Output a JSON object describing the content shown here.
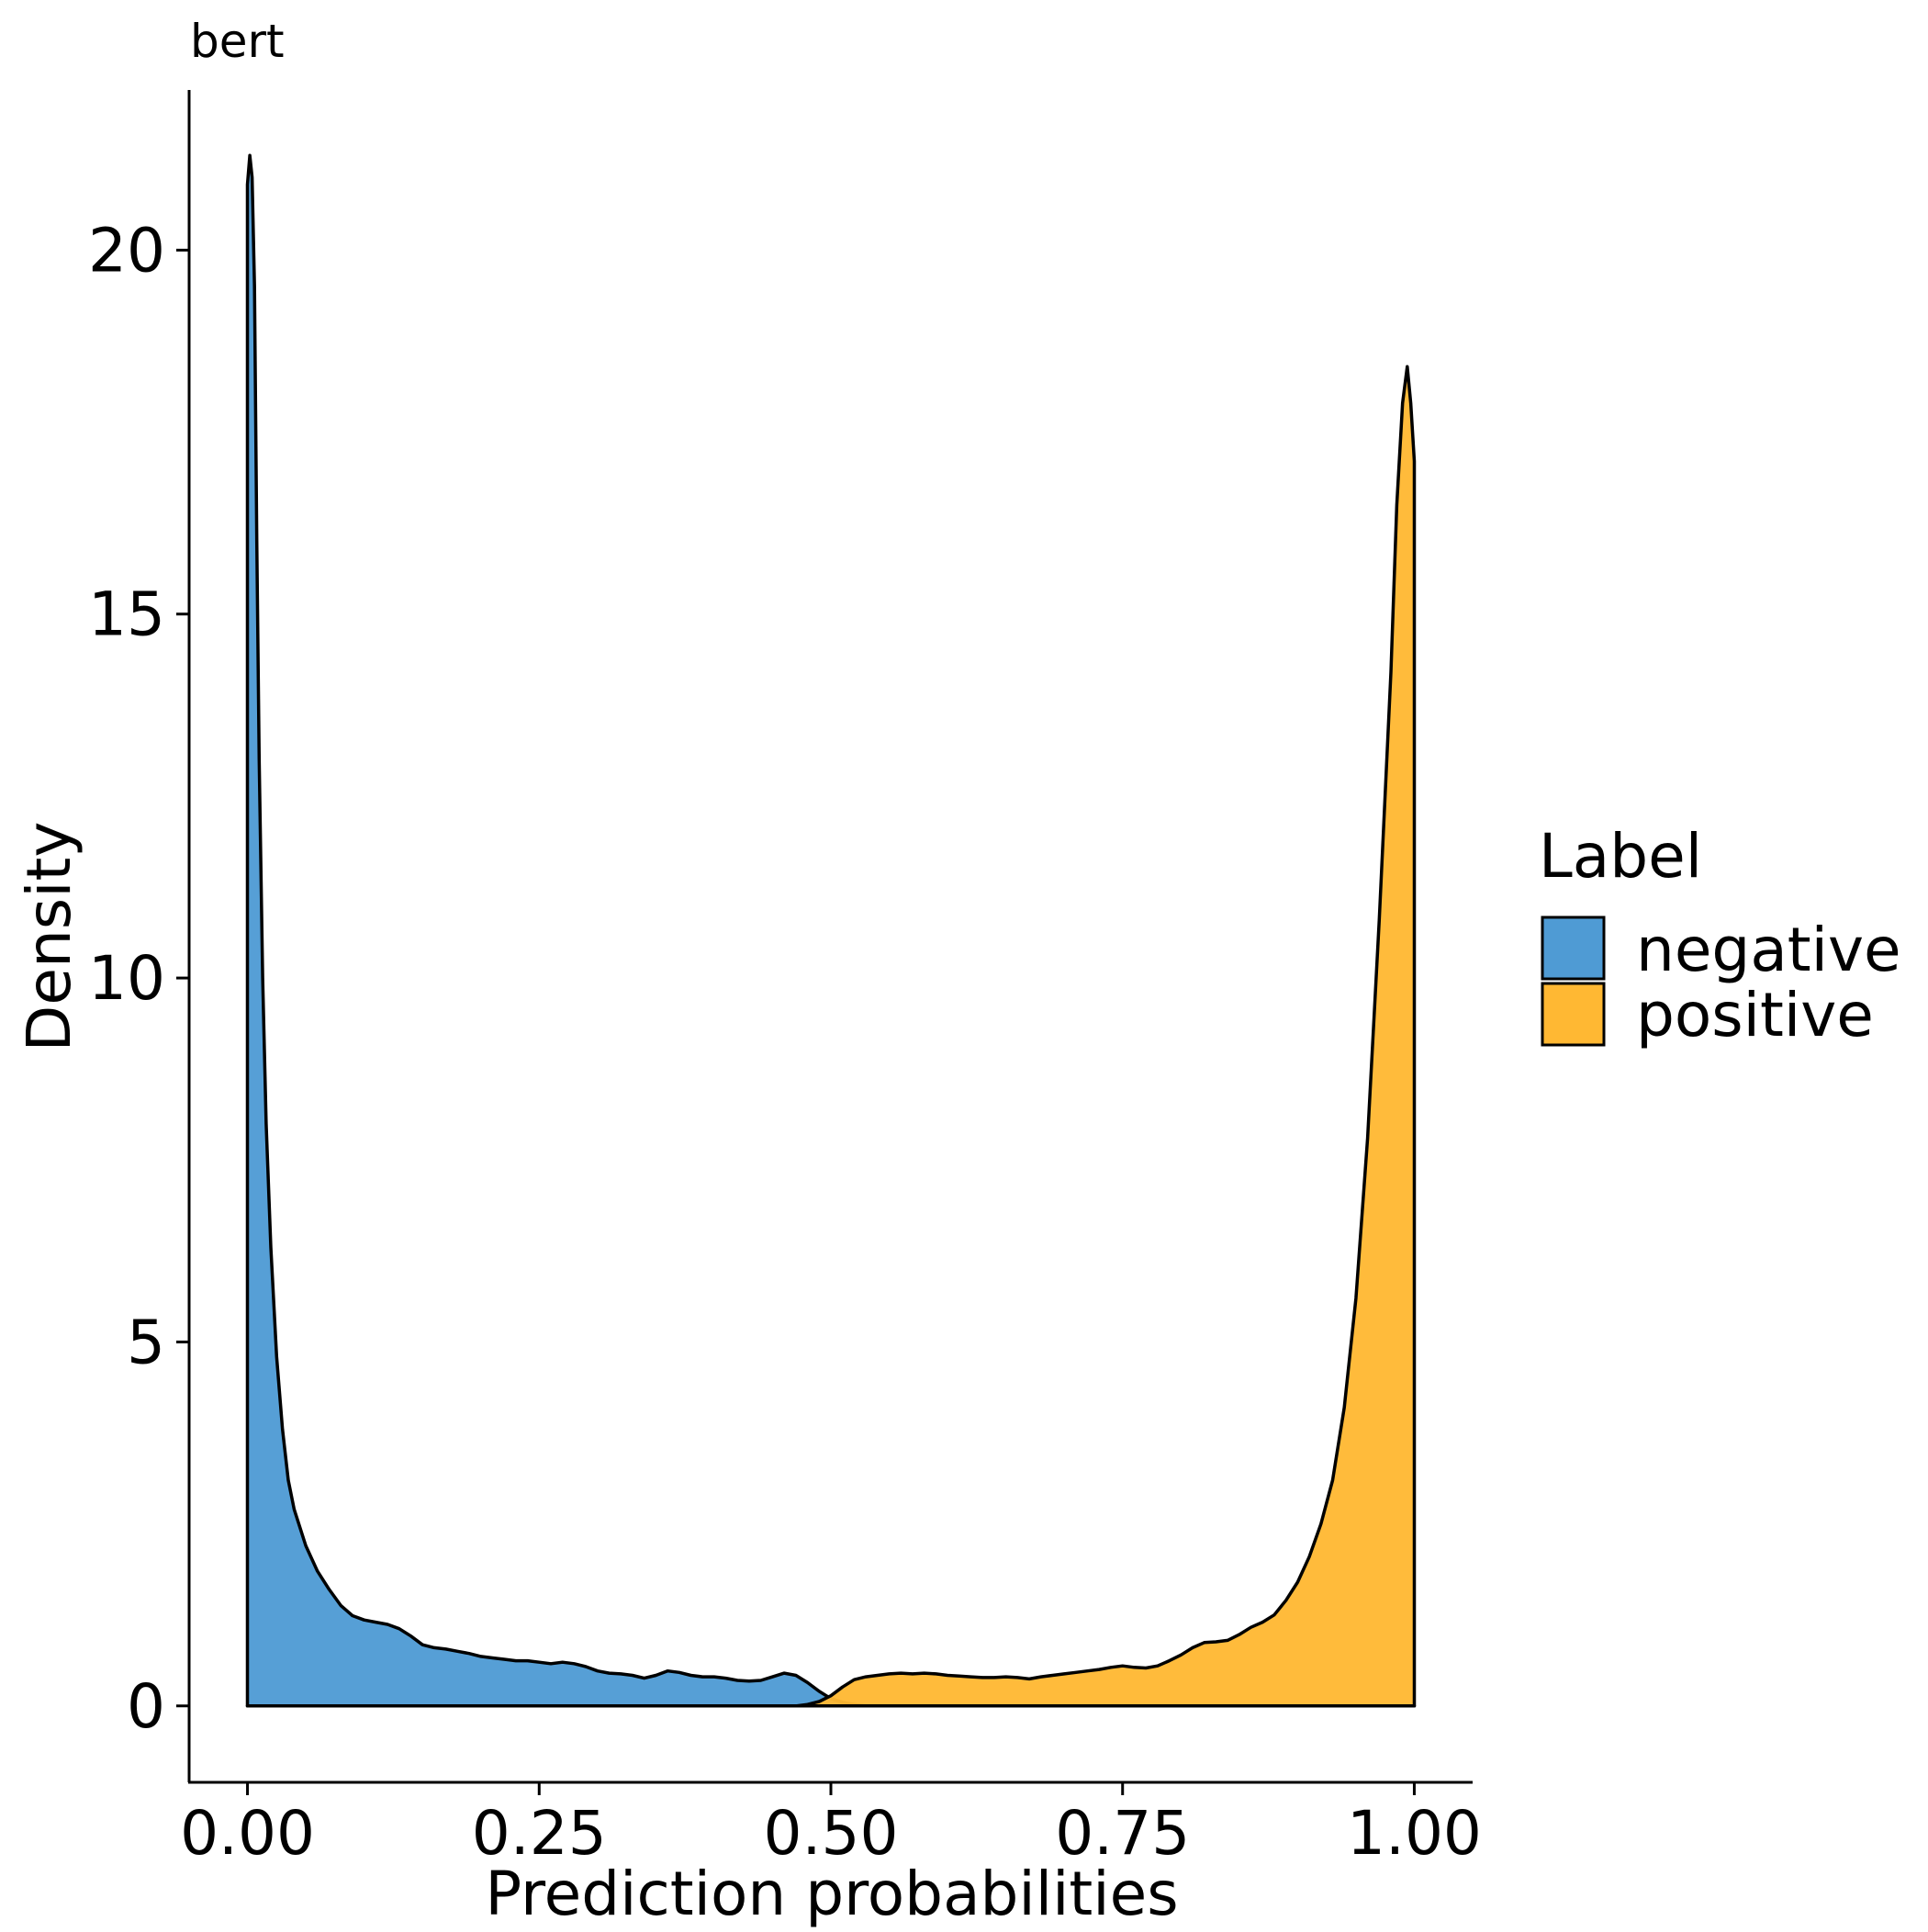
{
  "chart_data": {
    "type": "area",
    "title": "bert",
    "xlabel": "Prediction probabilities",
    "ylabel": "Density",
    "xlim": [
      -0.05,
      1.05
    ],
    "ylim": [
      -1.05,
      22.2
    ],
    "x_ticks": [
      0.0,
      0.25,
      0.5,
      0.75,
      1.0
    ],
    "x_tick_labels": [
      "0.00",
      "0.25",
      "0.50",
      "0.75",
      "1.00"
    ],
    "y_ticks": [
      0,
      5,
      10,
      15,
      20
    ],
    "y_tick_labels": [
      "0",
      "5",
      "10",
      "15",
      "20"
    ],
    "grid": false,
    "legend": {
      "title": "Label",
      "position": "right"
    },
    "series": [
      {
        "name": "negative",
        "color": "#4f9bd4",
        "points": [
          [
            0.0,
            20.9
          ],
          [
            0.002,
            21.3
          ],
          [
            0.004,
            21.0
          ],
          [
            0.006,
            19.5
          ],
          [
            0.008,
            16.0
          ],
          [
            0.01,
            13.0
          ],
          [
            0.013,
            10.0
          ],
          [
            0.016,
            8.0
          ],
          [
            0.02,
            6.3
          ],
          [
            0.025,
            4.8
          ],
          [
            0.03,
            3.8
          ],
          [
            0.035,
            3.1
          ],
          [
            0.04,
            2.7
          ],
          [
            0.05,
            2.2
          ],
          [
            0.06,
            1.85
          ],
          [
            0.07,
            1.6
          ],
          [
            0.08,
            1.38
          ],
          [
            0.09,
            1.24
          ],
          [
            0.1,
            1.18
          ],
          [
            0.11,
            1.15
          ],
          [
            0.12,
            1.12
          ],
          [
            0.13,
            1.06
          ],
          [
            0.14,
            0.96
          ],
          [
            0.15,
            0.84
          ],
          [
            0.16,
            0.8
          ],
          [
            0.17,
            0.78
          ],
          [
            0.18,
            0.75
          ],
          [
            0.19,
            0.72
          ],
          [
            0.2,
            0.68
          ],
          [
            0.21,
            0.66
          ],
          [
            0.22,
            0.64
          ],
          [
            0.23,
            0.62
          ],
          [
            0.24,
            0.62
          ],
          [
            0.25,
            0.6
          ],
          [
            0.26,
            0.58
          ],
          [
            0.27,
            0.6
          ],
          [
            0.28,
            0.58
          ],
          [
            0.29,
            0.54
          ],
          [
            0.3,
            0.48
          ],
          [
            0.31,
            0.45
          ],
          [
            0.32,
            0.44
          ],
          [
            0.33,
            0.42
          ],
          [
            0.34,
            0.38
          ],
          [
            0.35,
            0.42
          ],
          [
            0.36,
            0.48
          ],
          [
            0.37,
            0.46
          ],
          [
            0.38,
            0.42
          ],
          [
            0.39,
            0.4
          ],
          [
            0.4,
            0.4
          ],
          [
            0.41,
            0.38
          ],
          [
            0.42,
            0.35
          ],
          [
            0.43,
            0.34
          ],
          [
            0.44,
            0.35
          ],
          [
            0.45,
            0.4
          ],
          [
            0.46,
            0.45
          ],
          [
            0.47,
            0.42
          ],
          [
            0.48,
            0.32
          ],
          [
            0.49,
            0.2
          ],
          [
            0.5,
            0.1
          ],
          [
            0.51,
            0.05
          ],
          [
            0.52,
            0.02
          ],
          [
            0.53,
            0.0
          ],
          [
            1.0,
            0.0
          ]
        ]
      },
      {
        "name": "positive",
        "color": "#ffb833",
        "points": [
          [
            0.0,
            0.0
          ],
          [
            0.47,
            0.0
          ],
          [
            0.48,
            0.02
          ],
          [
            0.49,
            0.06
          ],
          [
            0.5,
            0.14
          ],
          [
            0.51,
            0.26
          ],
          [
            0.52,
            0.36
          ],
          [
            0.53,
            0.4
          ],
          [
            0.54,
            0.42
          ],
          [
            0.55,
            0.44
          ],
          [
            0.56,
            0.45
          ],
          [
            0.57,
            0.44
          ],
          [
            0.58,
            0.45
          ],
          [
            0.59,
            0.44
          ],
          [
            0.6,
            0.42
          ],
          [
            0.61,
            0.41
          ],
          [
            0.62,
            0.4
          ],
          [
            0.63,
            0.39
          ],
          [
            0.64,
            0.39
          ],
          [
            0.65,
            0.4
          ],
          [
            0.66,
            0.39
          ],
          [
            0.67,
            0.37
          ],
          [
            0.68,
            0.4
          ],
          [
            0.69,
            0.42
          ],
          [
            0.7,
            0.44
          ],
          [
            0.71,
            0.46
          ],
          [
            0.72,
            0.48
          ],
          [
            0.73,
            0.5
          ],
          [
            0.74,
            0.53
          ],
          [
            0.75,
            0.55
          ],
          [
            0.76,
            0.53
          ],
          [
            0.77,
            0.52
          ],
          [
            0.78,
            0.55
          ],
          [
            0.79,
            0.62
          ],
          [
            0.8,
            0.7
          ],
          [
            0.81,
            0.8
          ],
          [
            0.82,
            0.87
          ],
          [
            0.83,
            0.88
          ],
          [
            0.84,
            0.9
          ],
          [
            0.85,
            0.98
          ],
          [
            0.86,
            1.08
          ],
          [
            0.87,
            1.15
          ],
          [
            0.88,
            1.25
          ],
          [
            0.89,
            1.45
          ],
          [
            0.9,
            1.7
          ],
          [
            0.91,
            2.05
          ],
          [
            0.92,
            2.5
          ],
          [
            0.93,
            3.1
          ],
          [
            0.94,
            4.1
          ],
          [
            0.95,
            5.6
          ],
          [
            0.96,
            7.8
          ],
          [
            0.97,
            10.8
          ],
          [
            0.98,
            14.2
          ],
          [
            0.985,
            16.5
          ],
          [
            0.99,
            17.9
          ],
          [
            0.994,
            18.4
          ],
          [
            0.997,
            17.9
          ],
          [
            1.0,
            17.1
          ]
        ]
      }
    ]
  }
}
